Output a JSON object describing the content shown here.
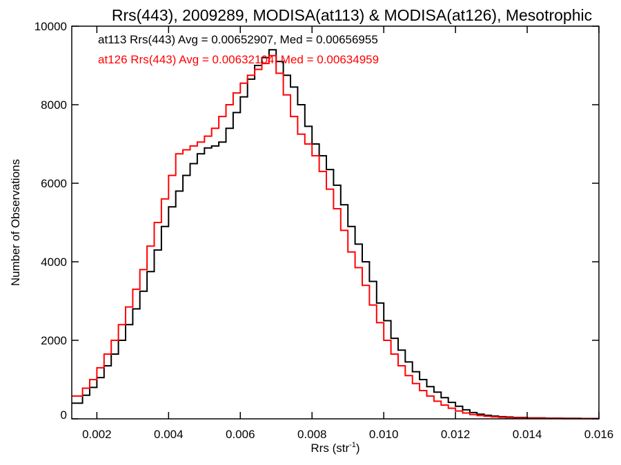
{
  "chart_data": {
    "type": "line",
    "title": "Rrs(443), 2009289, MODISA(at113) & MODISA(at126), Mesotrophic",
    "xlabel": "Rrs (str",
    "xlabel_sup": "-1",
    "xlabel_close": ")",
    "ylabel": "Number of Observations",
    "xlim": [
      0.0013,
      0.016
    ],
    "ylim": [
      0,
      10000
    ],
    "x_ticks": [
      0.002,
      0.004,
      0.006,
      0.008,
      0.01,
      0.012,
      0.014,
      0.016
    ],
    "x_tick_labels": [
      "0.002",
      "0.004",
      "0.006",
      "0.008",
      "0.010",
      "0.012",
      "0.014",
      "0.016"
    ],
    "y_ticks": [
      0,
      2000,
      4000,
      6000,
      8000,
      10000
    ],
    "y_tick_labels": [
      "0",
      "2000",
      "4000",
      "6000",
      "8000",
      "10000"
    ],
    "grid": false,
    "line_style": "step",
    "annotations": [
      {
        "text": "at113 Rrs(443) Avg = 0.00652907, Med = 0.00656955",
        "color": "#000000"
      },
      {
        "text": "at126 Rrs(443) Avg = 0.00632104, Med = 0.00634959",
        "color": "#ff0000"
      }
    ],
    "series": [
      {
        "color": "#000000",
        "x": [
          0.0013,
          0.0016,
          0.0018,
          0.002,
          0.0022,
          0.0024,
          0.0026,
          0.0028,
          0.003,
          0.0032,
          0.0034,
          0.0036,
          0.0038,
          0.004,
          0.0042,
          0.0044,
          0.0046,
          0.0048,
          0.005,
          0.0052,
          0.0054,
          0.0056,
          0.0058,
          0.006,
          0.0062,
          0.0064,
          0.0066,
          0.0068,
          0.007,
          0.0072,
          0.0074,
          0.0076,
          0.0078,
          0.008,
          0.0082,
          0.0084,
          0.0086,
          0.0088,
          0.009,
          0.0092,
          0.0094,
          0.0096,
          0.0098,
          0.01,
          0.0102,
          0.0104,
          0.0106,
          0.0108,
          0.011,
          0.0112,
          0.0114,
          0.0116,
          0.0118,
          0.012,
          0.0122,
          0.0124,
          0.0126,
          0.0128,
          0.013,
          0.0132,
          0.0134,
          0.0136,
          0.014,
          0.0145,
          0.015,
          0.0155,
          0.016
        ],
        "values": [
          400,
          600,
          800,
          1050,
          1350,
          1650,
          2000,
          2400,
          2800,
          3250,
          3750,
          4300,
          4900,
          5400,
          5800,
          6200,
          6500,
          6750,
          6900,
          6950,
          7050,
          7400,
          7800,
          8200,
          8650,
          9000,
          9200,
          9400,
          9100,
          8750,
          8450,
          8000,
          7450,
          7000,
          6700,
          6350,
          5950,
          5450,
          4900,
          4450,
          4000,
          3500,
          2950,
          2500,
          2050,
          1750,
          1450,
          1200,
          1000,
          820,
          680,
          540,
          420,
          320,
          230,
          160,
          120,
          90,
          70,
          55,
          45,
          35,
          25,
          18,
          12,
          8,
          5
        ]
      },
      {
        "color": "#ff0000",
        "x": [
          0.0013,
          0.0016,
          0.0018,
          0.002,
          0.0022,
          0.0024,
          0.0026,
          0.0028,
          0.003,
          0.0032,
          0.0034,
          0.0036,
          0.0038,
          0.004,
          0.0042,
          0.0044,
          0.0046,
          0.0048,
          0.005,
          0.0052,
          0.0054,
          0.0056,
          0.0058,
          0.006,
          0.0062,
          0.0064,
          0.0066,
          0.0068,
          0.007,
          0.0072,
          0.0074,
          0.0076,
          0.0078,
          0.008,
          0.0082,
          0.0084,
          0.0086,
          0.0088,
          0.009,
          0.0092,
          0.0094,
          0.0096,
          0.0098,
          0.01,
          0.0102,
          0.0104,
          0.0106,
          0.0108,
          0.011,
          0.0112,
          0.0114,
          0.0116,
          0.0118,
          0.012,
          0.0122,
          0.0124,
          0.0126,
          0.0128,
          0.013,
          0.0132,
          0.0134,
          0.0136,
          0.014,
          0.0145,
          0.015,
          0.0155,
          0.016
        ],
        "values": [
          580,
          780,
          1000,
          1300,
          1650,
          2000,
          2400,
          2850,
          3300,
          3800,
          4400,
          5000,
          5600,
          6200,
          6750,
          6850,
          6950,
          7050,
          7200,
          7400,
          7700,
          8000,
          8300,
          8550,
          8750,
          8900,
          9050,
          9250,
          8800,
          8250,
          7700,
          7250,
          7000,
          6700,
          6300,
          5850,
          5350,
          4800,
          4250,
          3850,
          3400,
          2900,
          2450,
          2000,
          1650,
          1350,
          1100,
          900,
          720,
          580,
          450,
          350,
          270,
          200,
          150,
          110,
          85,
          65,
          50,
          40,
          30,
          22,
          15,
          10,
          6,
          4,
          2
        ]
      }
    ]
  }
}
